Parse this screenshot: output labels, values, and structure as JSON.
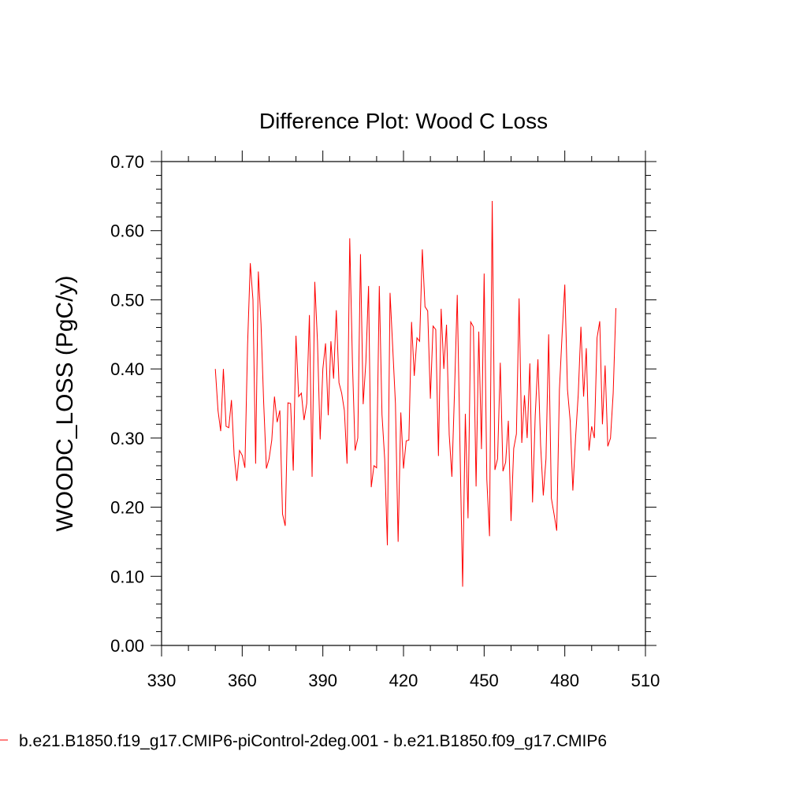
{
  "chart_data": {
    "type": "line",
    "title": "Difference Plot: Wood C Loss",
    "xlabel": "",
    "ylabel": "WOODC_LOSS  (PgC/y)",
    "xlim": [
      330,
      510
    ],
    "ylim": [
      0.0,
      0.7
    ],
    "x_ticks": [
      "330",
      "360",
      "390",
      "420",
      "450",
      "480",
      "510"
    ],
    "y_ticks": [
      "0.00",
      "0.10",
      "0.20",
      "0.30",
      "0.40",
      "0.50",
      "0.60",
      "0.70"
    ],
    "grid": false,
    "legend_position": "bottom",
    "series": [
      {
        "name": "b.e21.B1850.f19_g17.CMIP6-piControl-2deg.001 - b.e21.B1850.f09_g17.CMIP6",
        "color": "#ff0000",
        "x_start": 350,
        "x_step": 1,
        "values": [
          0.4,
          0.34,
          0.31,
          0.4,
          0.317,
          0.315,
          0.355,
          0.275,
          0.238,
          0.282,
          0.275,
          0.257,
          0.435,
          0.553,
          0.5,
          0.263,
          0.541,
          0.465,
          0.35,
          0.256,
          0.27,
          0.297,
          0.36,
          0.323,
          0.34,
          0.19,
          0.173,
          0.351,
          0.35,
          0.253,
          0.448,
          0.36,
          0.365,
          0.326,
          0.35,
          0.478,
          0.244,
          0.526,
          0.44,
          0.298,
          0.4,
          0.437,
          0.333,
          0.44,
          0.386,
          0.485,
          0.38,
          0.365,
          0.34,
          0.263,
          0.589,
          0.41,
          0.282,
          0.3,
          0.566,
          0.349,
          0.41,
          0.52,
          0.229,
          0.26,
          0.257,
          0.52,
          0.334,
          0.27,
          0.145,
          0.51,
          0.43,
          0.35,
          0.15,
          0.337,
          0.256,
          0.296,
          0.297,
          0.468,
          0.39,
          0.445,
          0.44,
          0.573,
          0.49,
          0.484,
          0.357,
          0.462,
          0.457,
          0.274,
          0.487,
          0.4,
          0.464,
          0.305,
          0.244,
          0.37,
          0.507,
          0.29,
          0.085,
          0.335,
          0.184,
          0.468,
          0.461,
          0.23,
          0.454,
          0.284,
          0.538,
          0.24,
          0.158,
          0.643,
          0.254,
          0.27,
          0.409,
          0.252,
          0.265,
          0.325,
          0.18,
          0.285,
          0.306,
          0.502,
          0.293,
          0.362,
          0.3,
          0.408,
          0.207,
          0.332,
          0.414,
          0.29,
          0.217,
          0.27,
          0.45,
          0.213,
          0.19,
          0.166,
          0.37,
          0.45,
          0.522,
          0.37,
          0.325,
          0.224,
          0.3,
          0.363,
          0.461,
          0.36,
          0.43,
          0.282,
          0.317,
          0.3,
          0.445,
          0.469,
          0.32,
          0.405,
          0.288,
          0.3,
          0.365,
          0.488
        ]
      }
    ]
  }
}
